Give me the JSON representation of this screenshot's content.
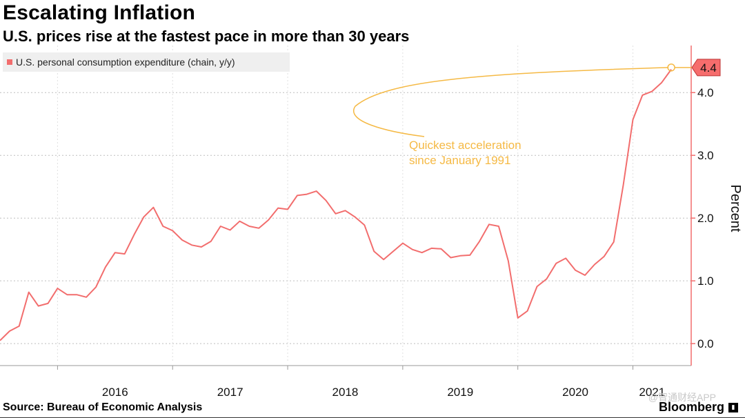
{
  "header": {
    "title": "Escalating Inflation",
    "subtitle": "U.S. prices rise at the fastest pace in more than 30 years"
  },
  "footer": {
    "source": "Source: Bureau of Economic Analysis",
    "brand": "Bloomberg",
    "watermark": "@智通财经APP"
  },
  "chart_data": {
    "type": "line",
    "title": "Escalating Inflation",
    "subtitle": "U.S. prices rise at the fastest pace in more than 30 years",
    "ylabel": "Percent",
    "xlabel": "",
    "ylim": [
      -0.35,
      4.75
    ],
    "xlim": [
      "2015-07",
      "2021-06"
    ],
    "yticks": [
      0.0,
      1.0,
      2.0,
      3.0,
      4.0
    ],
    "ytick_labels": [
      "0.0",
      "1.0",
      "2.0",
      "3.0",
      "4.0"
    ],
    "xticks": [
      "2016",
      "2017",
      "2018",
      "2019",
      "2020",
      "2021"
    ],
    "grid": true,
    "legend": "top-left",
    "colors": {
      "series": "#f26d6d",
      "annotation": "#f5b944",
      "last_value_bg": "#f66d6d"
    },
    "last_value_label": "4.4",
    "annotation": {
      "text_line1": "Quickest acceleration",
      "text_line2": "since January 1991",
      "target_date": "2021-05",
      "target_value": 4.4
    },
    "series": [
      {
        "name": "U.S. personal consumption expenditure (chain, y/y)",
        "x": [
          "2015-07",
          "2015-08",
          "2015-09",
          "2015-10",
          "2015-11",
          "2015-12",
          "2016-01",
          "2016-02",
          "2016-03",
          "2016-04",
          "2016-05",
          "2016-06",
          "2016-07",
          "2016-08",
          "2016-09",
          "2016-10",
          "2016-11",
          "2016-12",
          "2017-01",
          "2017-02",
          "2017-03",
          "2017-04",
          "2017-05",
          "2017-06",
          "2017-07",
          "2017-08",
          "2017-09",
          "2017-10",
          "2017-11",
          "2017-12",
          "2018-01",
          "2018-02",
          "2018-03",
          "2018-04",
          "2018-05",
          "2018-06",
          "2018-07",
          "2018-08",
          "2018-09",
          "2018-10",
          "2018-11",
          "2018-12",
          "2019-01",
          "2019-02",
          "2019-03",
          "2019-04",
          "2019-05",
          "2019-06",
          "2019-07",
          "2019-08",
          "2019-09",
          "2019-10",
          "2019-11",
          "2019-12",
          "2020-01",
          "2020-02",
          "2020-03",
          "2020-04",
          "2020-05",
          "2020-06",
          "2020-07",
          "2020-08",
          "2020-09",
          "2020-10",
          "2020-11",
          "2020-12",
          "2021-01",
          "2021-02",
          "2021-03",
          "2021-04",
          "2021-05"
        ],
        "values": [
          0.05,
          0.2,
          0.28,
          0.82,
          0.6,
          0.64,
          0.88,
          0.78,
          0.78,
          0.74,
          0.9,
          1.22,
          1.45,
          1.43,
          1.74,
          2.02,
          2.17,
          1.87,
          1.8,
          1.65,
          1.57,
          1.54,
          1.63,
          1.87,
          1.81,
          1.95,
          1.87,
          1.84,
          1.97,
          2.16,
          2.14,
          2.36,
          2.38,
          2.43,
          2.28,
          2.07,
          2.12,
          2.02,
          1.89,
          1.47,
          1.34,
          1.47,
          1.6,
          1.5,
          1.45,
          1.52,
          1.51,
          1.37,
          1.4,
          1.41,
          1.63,
          1.9,
          1.87,
          1.32,
          0.41,
          0.52,
          0.91,
          1.03,
          1.28,
          1.36,
          1.17,
          1.09,
          1.26,
          1.39,
          1.62,
          2.53,
          3.57,
          3.96,
          4.02,
          4.16,
          4.37
        ]
      }
    ]
  }
}
